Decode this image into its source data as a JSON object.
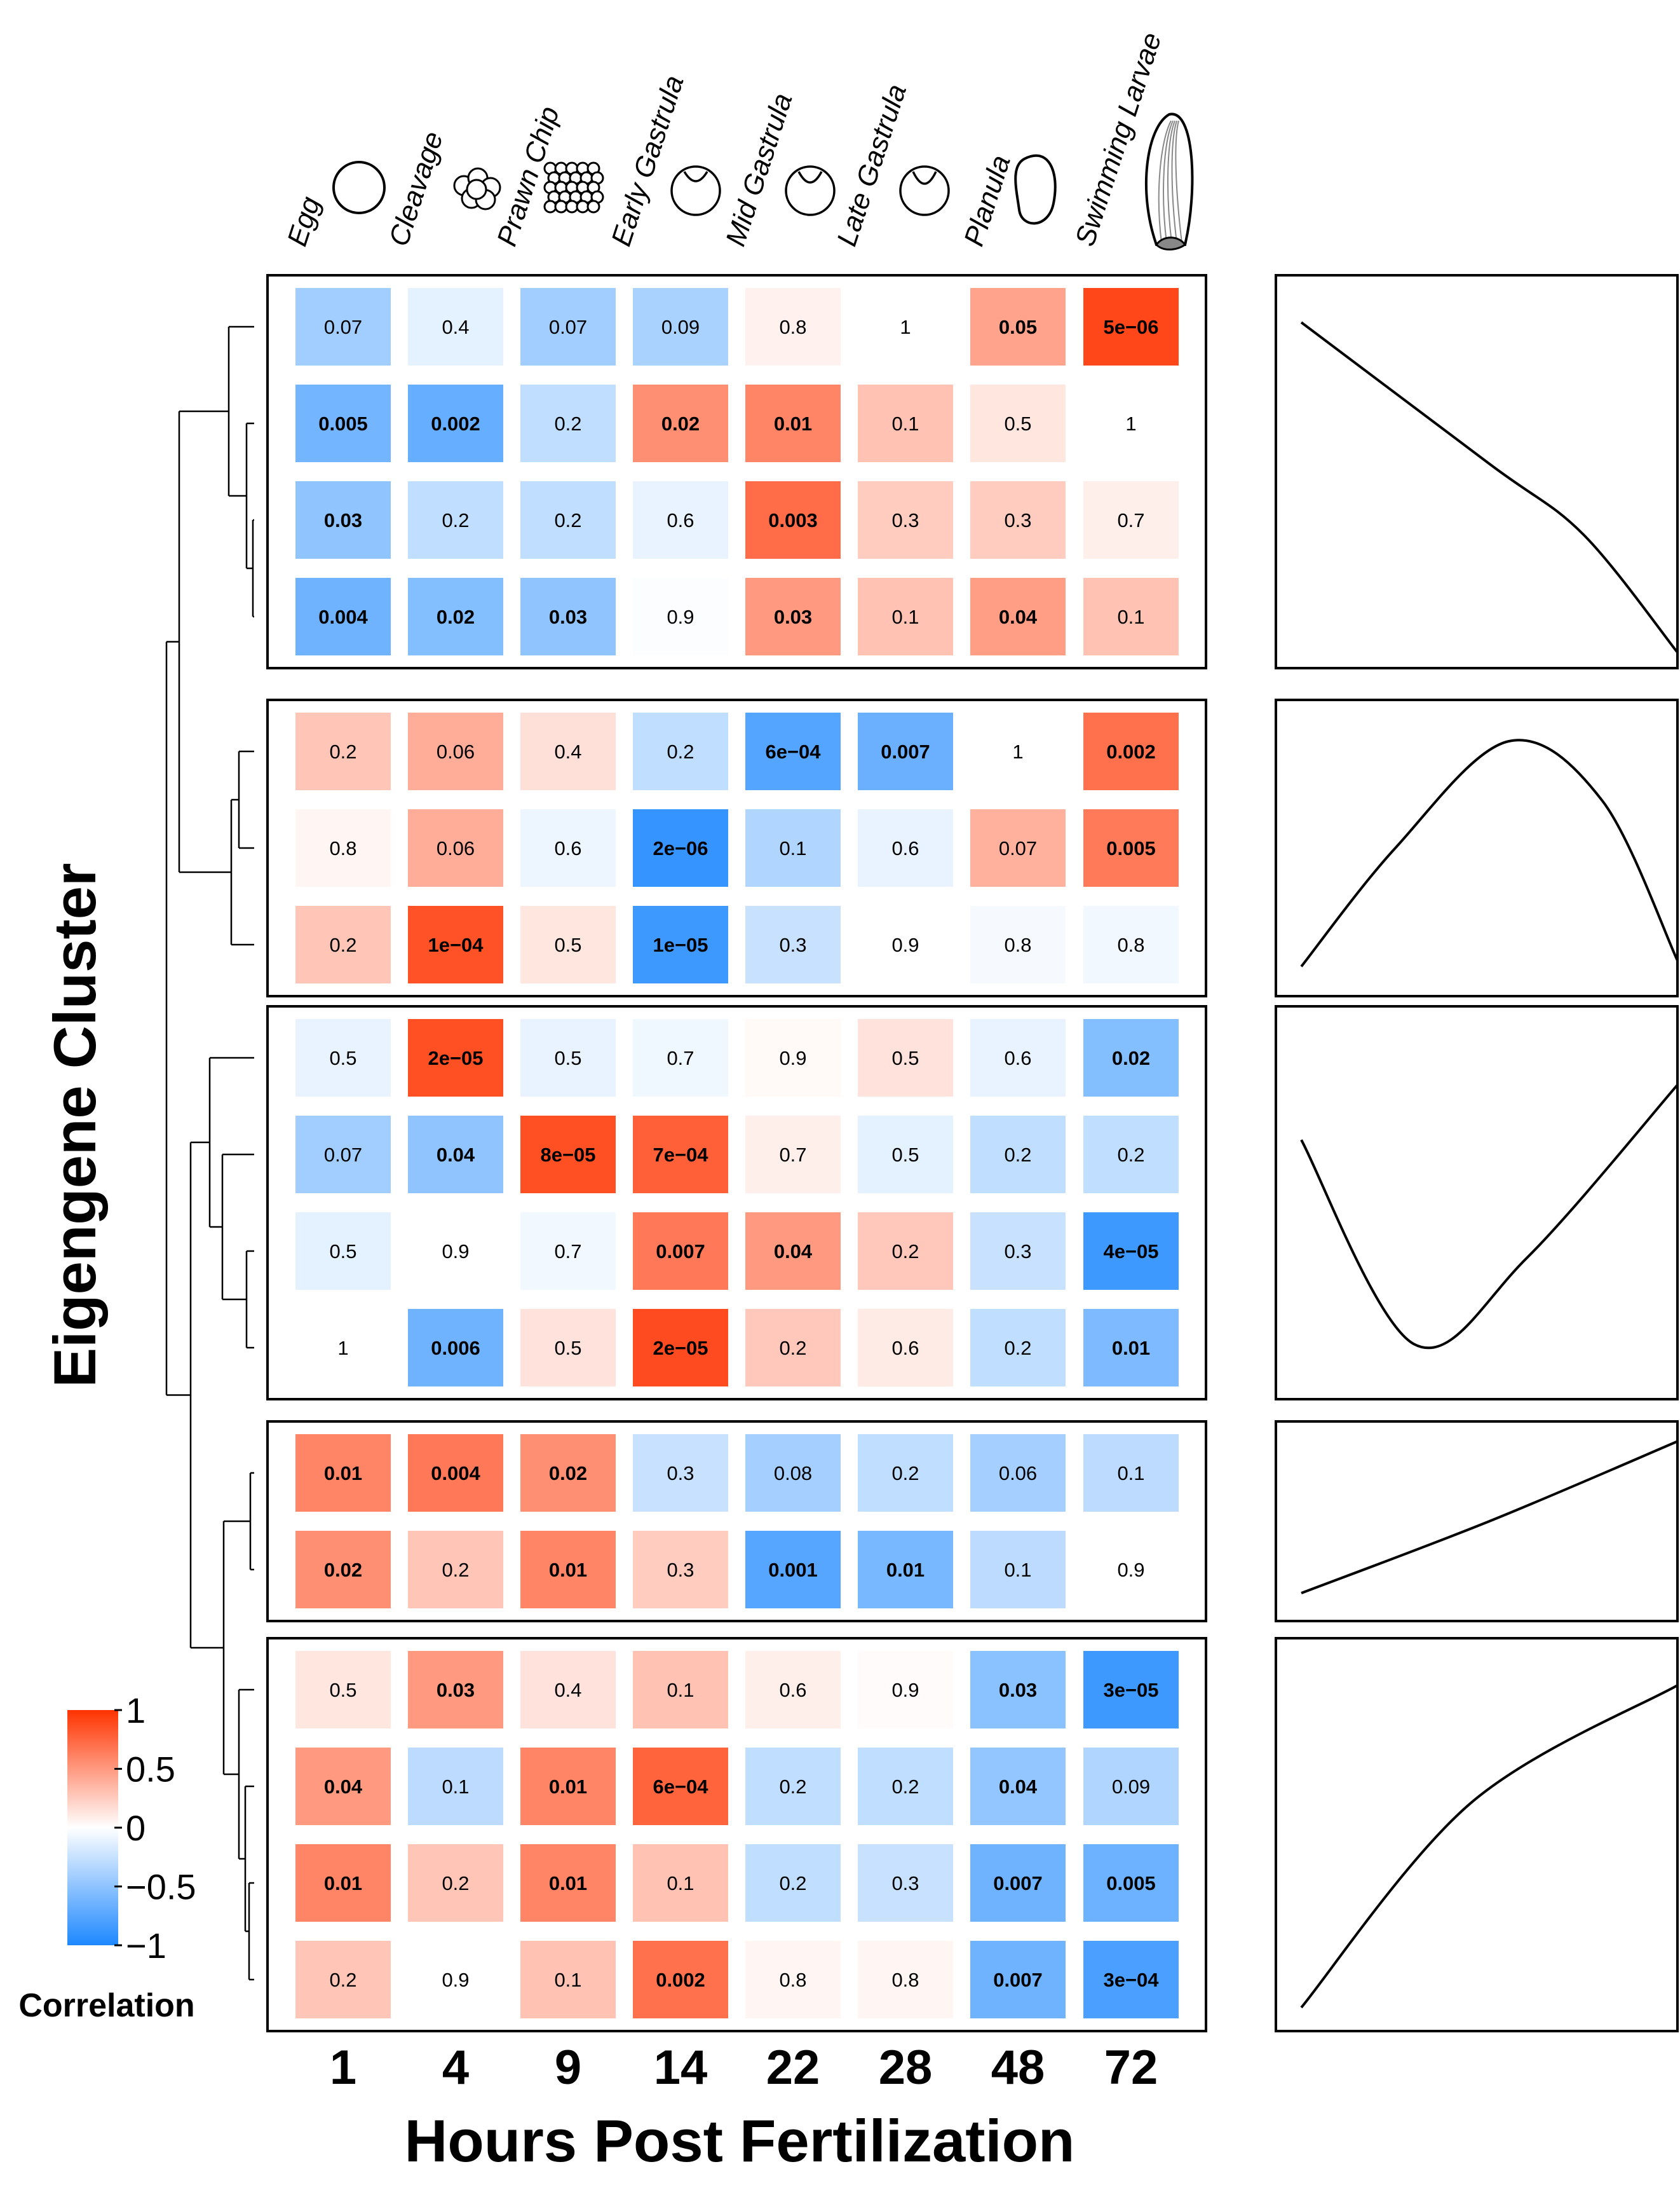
{
  "chart_data": {
    "type": "heatmap",
    "title": "",
    "xlabel": "Hours Post Fertilization",
    "ylabel": "Eigengene Cluster",
    "categories": [
      "1",
      "4",
      "9",
      "14",
      "22",
      "28",
      "48",
      "72"
    ],
    "stages": [
      "Egg",
      "Cleavage",
      "Prawn Chip",
      "Early Gastrula",
      "Mid Gastrula",
      "Late Gastrula",
      "Planula",
      "Swimming Larvae"
    ],
    "legend": {
      "title": "Correlation",
      "ticks": [
        "1",
        "0.5",
        "0",
        "−0.5",
        "−1"
      ],
      "range": [
        -1,
        1
      ],
      "low_color": "#1e88ff",
      "mid_color": "#ffffff",
      "high_color": "#ff3300"
    },
    "clusters": [
      {
        "trend": [
          [
            0,
            0.88
          ],
          [
            0.5,
            0.52
          ],
          [
            0.75,
            0.34
          ],
          [
            1,
            0.04
          ]
        ],
        "rows": [
          {
            "labels": [
              "0.07",
              "0.4",
              "0.07",
              "0.09",
              "0.8",
              "1",
              "0.05",
              "5e−06"
            ],
            "corr": [
              -0.42,
              -0.12,
              -0.42,
              -0.38,
              0.07,
              0,
              0.45,
              0.9
            ],
            "bold": [
              false,
              false,
              false,
              false,
              false,
              false,
              true,
              true
            ]
          },
          {
            "labels": [
              "0.005",
              "0.002",
              "0.2",
              "0.02",
              "0.01",
              "0.1",
              "0.5",
              "1"
            ],
            "corr": [
              -0.62,
              -0.68,
              -0.28,
              0.55,
              0.6,
              0.3,
              0.12,
              0
            ],
            "bold": [
              true,
              true,
              false,
              true,
              true,
              false,
              false,
              false
            ]
          },
          {
            "labels": [
              "0.03",
              "0.2",
              "0.2",
              "0.6",
              "0.003",
              "0.3",
              "0.3",
              "0.7"
            ],
            "corr": [
              -0.5,
              -0.28,
              -0.28,
              -0.1,
              0.72,
              0.25,
              0.25,
              0.08
            ],
            "bold": [
              true,
              false,
              false,
              false,
              true,
              false,
              false,
              false
            ]
          },
          {
            "labels": [
              "0.004",
              "0.02",
              "0.03",
              "0.9",
              "0.03",
              "0.1",
              "0.04",
              "0.1"
            ],
            "corr": [
              -0.64,
              -0.55,
              -0.5,
              -0.02,
              0.5,
              0.3,
              0.48,
              0.3
            ],
            "bold": [
              true,
              true,
              true,
              false,
              true,
              false,
              true,
              false
            ]
          }
        ]
      },
      {
        "trend": [
          [
            0,
            0.1
          ],
          [
            0.25,
            0.5
          ],
          [
            0.55,
            0.86
          ],
          [
            0.8,
            0.66
          ],
          [
            1,
            0.12
          ]
        ],
        "rows": [
          {
            "labels": [
              "0.2",
              "0.06",
              "0.4",
              "0.2",
              "6e−04",
              "0.007",
              "1",
              "0.002"
            ],
            "corr": [
              0.28,
              0.4,
              0.15,
              -0.28,
              -0.76,
              -0.66,
              0,
              0.7
            ],
            "bold": [
              false,
              false,
              false,
              false,
              true,
              true,
              false,
              true
            ]
          },
          {
            "labels": [
              "0.8",
              "0.06",
              "0.6",
              "2e−06",
              "0.1",
              "0.6",
              "0.07",
              "0.005"
            ],
            "corr": [
              0.05,
              0.4,
              -0.08,
              -0.9,
              -0.35,
              -0.1,
              0.38,
              0.65
            ],
            "bold": [
              false,
              false,
              false,
              true,
              false,
              false,
              false,
              true
            ]
          },
          {
            "labels": [
              "0.2",
              "1e−04",
              "0.5",
              "1e−05",
              "0.3",
              "0.9",
              "0.8",
              "0.8"
            ],
            "corr": [
              0.28,
              0.85,
              0.12,
              -0.86,
              -0.25,
              0,
              -0.04,
              -0.06
            ],
            "bold": [
              false,
              true,
              false,
              true,
              false,
              false,
              false,
              false
            ]
          }
        ]
      },
      {
        "trend": [
          [
            0,
            0.66
          ],
          [
            0.3,
            0.14
          ],
          [
            0.6,
            0.36
          ],
          [
            1,
            0.8
          ]
        ],
        "rows": [
          {
            "labels": [
              "0.5",
              "2e−05",
              "0.5",
              "0.7",
              "0.9",
              "0.5",
              "0.6",
              "0.02"
            ],
            "corr": [
              -0.1,
              0.86,
              -0.1,
              -0.07,
              0.03,
              0.14,
              -0.1,
              -0.55
            ],
            "bold": [
              false,
              true,
              false,
              false,
              false,
              false,
              false,
              true
            ]
          },
          {
            "labels": [
              "0.07",
              "0.04",
              "8e−05",
              "7e−04",
              "0.7",
              "0.5",
              "0.2",
              "0.2"
            ],
            "corr": [
              -0.42,
              -0.5,
              0.86,
              0.78,
              0.08,
              -0.12,
              -0.28,
              -0.28
            ],
            "bold": [
              false,
              true,
              true,
              true,
              false,
              false,
              false,
              false
            ]
          },
          {
            "labels": [
              "0.5",
              "0.9",
              "0.7",
              "0.007",
              "0.04",
              "0.2",
              "0.3",
              "4e−05"
            ],
            "corr": [
              -0.12,
              0,
              -0.06,
              0.66,
              0.5,
              0.27,
              -0.25,
              -0.86
            ],
            "bold": [
              false,
              false,
              false,
              true,
              true,
              false,
              false,
              true
            ]
          },
          {
            "labels": [
              "1",
              "0.006",
              "0.5",
              "2e−05",
              "0.2",
              "0.6",
              "0.2",
              "0.01"
            ],
            "corr": [
              0,
              -0.64,
              0.14,
              0.88,
              0.27,
              0.1,
              -0.28,
              -0.58
            ],
            "bold": [
              false,
              true,
              false,
              true,
              false,
              false,
              false,
              true
            ]
          }
        ]
      },
      {
        "trend": [
          [
            0,
            0.14
          ],
          [
            0.5,
            0.5
          ],
          [
            1,
            0.9
          ]
        ],
        "rows": [
          {
            "labels": [
              "0.01",
              "0.004",
              "0.02",
              "0.3",
              "0.08",
              "0.2",
              "0.06",
              "0.1"
            ],
            "corr": [
              0.6,
              0.66,
              0.55,
              -0.25,
              -0.4,
              -0.28,
              -0.4,
              -0.3
            ],
            "bold": [
              true,
              true,
              true,
              false,
              false,
              false,
              false,
              false
            ]
          },
          {
            "labels": [
              "0.02",
              "0.2",
              "0.01",
              "0.3",
              "0.001",
              "0.01",
              "0.1",
              "0.9"
            ],
            "corr": [
              0.55,
              0.28,
              0.6,
              0.25,
              -0.75,
              -0.6,
              -0.3,
              0
            ],
            "bold": [
              true,
              false,
              true,
              false,
              true,
              true,
              false,
              false
            ]
          }
        ]
      },
      {
        "trend": [
          [
            0,
            0.06
          ],
          [
            0.45,
            0.58
          ],
          [
            1,
            0.88
          ]
        ],
        "rows": [
          {
            "labels": [
              "0.5",
              "0.03",
              "0.4",
              "0.1",
              "0.6",
              "0.9",
              "0.03",
              "3e−05"
            ],
            "corr": [
              0.12,
              0.5,
              0.14,
              0.3,
              0.08,
              0.02,
              -0.52,
              -0.86
            ],
            "bold": [
              false,
              true,
              false,
              false,
              false,
              false,
              true,
              true
            ]
          },
          {
            "labels": [
              "0.04",
              "0.1",
              "0.01",
              "6e−04",
              "0.2",
              "0.2",
              "0.04",
              "0.09"
            ],
            "corr": [
              0.5,
              -0.3,
              0.6,
              0.76,
              -0.28,
              -0.28,
              -0.48,
              -0.35
            ],
            "bold": [
              true,
              false,
              true,
              true,
              false,
              false,
              true,
              false
            ]
          },
          {
            "labels": [
              "0.01",
              "0.2",
              "0.01",
              "0.1",
              "0.2",
              "0.3",
              "0.007",
              "0.005"
            ],
            "corr": [
              0.6,
              0.28,
              0.6,
              0.3,
              -0.28,
              -0.25,
              -0.64,
              -0.65
            ],
            "bold": [
              true,
              false,
              true,
              false,
              false,
              false,
              true,
              true
            ]
          },
          {
            "labels": [
              "0.2",
              "0.9",
              "0.1",
              "0.002",
              "0.8",
              "0.8",
              "0.007",
              "3e−04"
            ],
            "corr": [
              0.28,
              0,
              0.3,
              0.7,
              0.05,
              0.05,
              -0.64,
              -0.8
            ],
            "bold": [
              false,
              false,
              false,
              true,
              false,
              false,
              true,
              true
            ]
          }
        ]
      }
    ]
  }
}
